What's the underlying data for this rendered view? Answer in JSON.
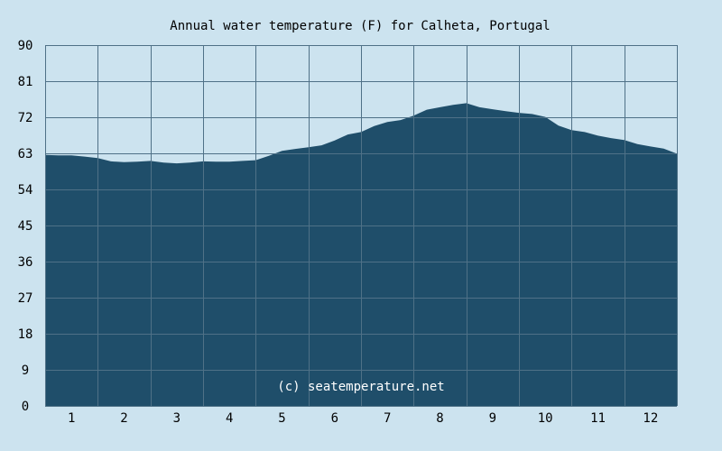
{
  "chart_data": {
    "type": "area",
    "title": "Annual water temperature (F) for Calheta, Portugal",
    "xlabel": "",
    "ylabel": "",
    "categories": [
      "1",
      "2",
      "3",
      "4",
      "5",
      "6",
      "7",
      "8",
      "9",
      "10",
      "11",
      "12"
    ],
    "yticks": [
      "0",
      "9",
      "18",
      "27",
      "36",
      "45",
      "54",
      "63",
      "72",
      "81",
      "90"
    ],
    "ylim": [
      0,
      90
    ],
    "xlim": [
      0.5,
      12.5
    ],
    "grid": true,
    "x": [
      0.5,
      0.75,
      1.0,
      1.25,
      1.5,
      1.75,
      2.0,
      2.25,
      2.5,
      2.75,
      3.0,
      3.25,
      3.5,
      3.75,
      4.0,
      4.25,
      4.5,
      4.75,
      5.0,
      5.25,
      5.5,
      5.75,
      6.0,
      6.25,
      6.5,
      6.75,
      7.0,
      7.25,
      7.5,
      7.75,
      8.0,
      8.25,
      8.5,
      8.75,
      9.0,
      9.25,
      9.5,
      9.75,
      10.0,
      10.25,
      10.5,
      10.75,
      11.0,
      11.25,
      11.5,
      11.75,
      12.0,
      12.25,
      12.5
    ],
    "series": [
      {
        "values": [
          62.6,
          62.5,
          62.5,
          62.2,
          61.8,
          61.0,
          60.8,
          60.9,
          61.1,
          60.7,
          60.5,
          60.7,
          61.0,
          60.9,
          60.9,
          61.1,
          61.3,
          62.4,
          63.6,
          64.1,
          64.5,
          65.0,
          66.2,
          67.7,
          68.3,
          69.8,
          70.8,
          71.3,
          72.4,
          73.9,
          74.5,
          75.1,
          75.5,
          74.5,
          74.0,
          73.5,
          73.1,
          72.8,
          72.1,
          69.9,
          68.8,
          68.3,
          67.4,
          66.8,
          66.3,
          65.3,
          64.7,
          64.2,
          62.9
        ]
      }
    ],
    "colors": {
      "background": "#cce3ef",
      "fill": "#1f4e6a",
      "grid": "#4f7187",
      "watermark": "#ffffff"
    },
    "watermark": "(c) seatemperature.net"
  }
}
